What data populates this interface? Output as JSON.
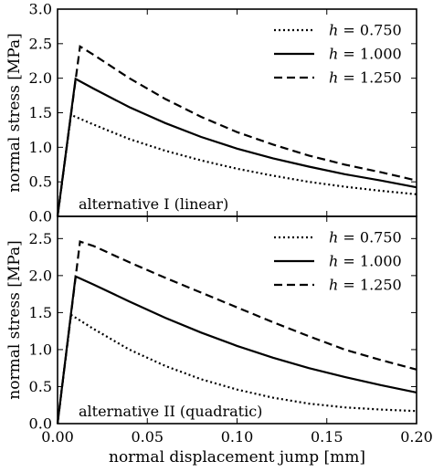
{
  "chart_data": [
    {
      "type": "line",
      "annotation": "alternative I (linear)",
      "xlabel": "",
      "ylabel": "normal stress [MPa]",
      "xlim": [
        0.0,
        0.2
      ],
      "ylim": [
        0.0,
        3.0
      ],
      "xticks": [],
      "yticks": [
        "0.0",
        "0.5",
        "1.0",
        "1.5",
        "2.0",
        "2.5",
        "3.0"
      ],
      "legend_position": "top-right",
      "series": [
        {
          "name": "h = 0.750",
          "legend_var": "h",
          "legend_value": " = 0.750",
          "style": "dotted",
          "x": [
            0,
            0.0075,
            0.02,
            0.04,
            0.06,
            0.08,
            0.1,
            0.12,
            0.14,
            0.16,
            0.18,
            0.2
          ],
          "y": [
            0,
            1.47,
            1.33,
            1.12,
            0.95,
            0.81,
            0.69,
            0.59,
            0.5,
            0.43,
            0.37,
            0.32
          ]
        },
        {
          "name": "h = 1.000",
          "legend_var": "h",
          "legend_value": " = 1.000",
          "style": "solid",
          "x": [
            0,
            0.01,
            0.02,
            0.04,
            0.06,
            0.08,
            0.1,
            0.12,
            0.14,
            0.16,
            0.18,
            0.2
          ],
          "y": [
            0,
            1.99,
            1.85,
            1.58,
            1.35,
            1.15,
            0.98,
            0.84,
            0.72,
            0.61,
            0.52,
            0.42
          ]
        },
        {
          "name": "h = 1.250",
          "legend_var": "h",
          "legend_value": " = 1.250",
          "style": "dashed",
          "x": [
            0,
            0.0125,
            0.02,
            0.04,
            0.06,
            0.08,
            0.1,
            0.12,
            0.14,
            0.16,
            0.18,
            0.2
          ],
          "y": [
            0,
            2.46,
            2.34,
            2.0,
            1.7,
            1.44,
            1.22,
            1.04,
            0.88,
            0.75,
            0.64,
            0.52
          ]
        }
      ]
    },
    {
      "type": "line",
      "annotation": "alternative II (quadratic)",
      "xlabel": "normal displacement jump [mm]",
      "ylabel": "normal stress [MPa]",
      "xlim": [
        0.0,
        0.2
      ],
      "ylim": [
        0.0,
        2.8
      ],
      "xticks": [
        "0.00",
        "0.05",
        "0.10",
        "0.15",
        "0.20"
      ],
      "yticks": [
        "0.0",
        "0.5",
        "1.0",
        "1.5",
        "2.0",
        "2.5"
      ],
      "legend_position": "top-right",
      "series": [
        {
          "name": "h = 0.750",
          "legend_var": "h",
          "legend_value": " = 0.750",
          "style": "dotted",
          "x": [
            0,
            0.0075,
            0.02,
            0.04,
            0.06,
            0.08,
            0.1,
            0.12,
            0.14,
            0.16,
            0.18,
            0.2
          ],
          "y": [
            0,
            1.47,
            1.28,
            1.0,
            0.78,
            0.6,
            0.46,
            0.35,
            0.27,
            0.22,
            0.19,
            0.17
          ]
        },
        {
          "name": "h = 1.000",
          "legend_var": "h",
          "legend_value": " = 1.000",
          "style": "solid",
          "x": [
            0,
            0.01,
            0.02,
            0.04,
            0.06,
            0.08,
            0.1,
            0.12,
            0.14,
            0.16,
            0.18,
            0.2
          ],
          "y": [
            0,
            1.99,
            1.88,
            1.65,
            1.43,
            1.23,
            1.05,
            0.89,
            0.75,
            0.63,
            0.52,
            0.42
          ]
        },
        {
          "name": "h = 1.250",
          "legend_var": "h",
          "legend_value": " = 1.250",
          "style": "dashed",
          "x": [
            0,
            0.0125,
            0.02,
            0.04,
            0.06,
            0.08,
            0.1,
            0.12,
            0.14,
            0.16,
            0.18,
            0.2
          ],
          "y": [
            0,
            2.46,
            2.4,
            2.18,
            1.97,
            1.77,
            1.57,
            1.37,
            1.18,
            1.0,
            0.86,
            0.73
          ]
        }
      ]
    }
  ]
}
